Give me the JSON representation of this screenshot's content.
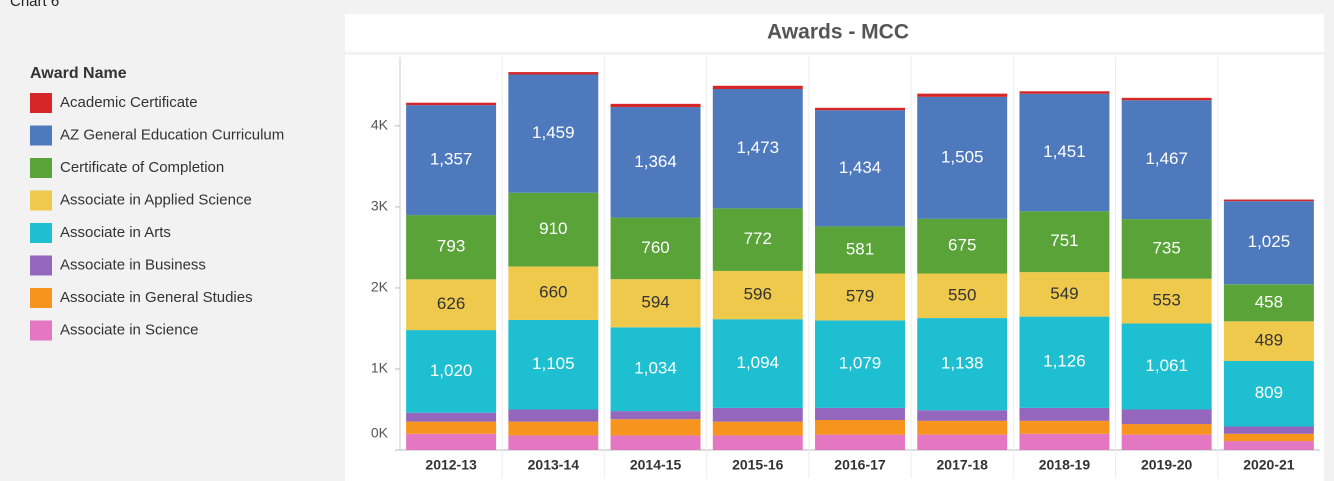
{
  "chart_data": {
    "type": "stacked_bar",
    "page_label": "Chart 6",
    "title": "Awards  - MCC",
    "legend_title": "Award Name",
    "categories": [
      "2012-13",
      "2013-14",
      "2014-15",
      "2015-16",
      "2016-17",
      "2017-18",
      "2018-19",
      "2019-20",
      "2020-21"
    ],
    "ylim": [
      0,
      4850
    ],
    "yticks": [
      {
        "value": 0,
        "label": "0K"
      },
      {
        "value": 1000,
        "label": "1K"
      },
      {
        "value": 2000,
        "label": "2K"
      },
      {
        "value": 3000,
        "label": "3K"
      },
      {
        "value": 4000,
        "label": "4K"
      }
    ],
    "grid": false,
    "legend_position": "left",
    "series": [
      {
        "name": "Academic Certificate",
        "color": "#d62728",
        "values": [
          30,
          30,
          40,
          40,
          30,
          40,
          30,
          30,
          20
        ]
      },
      {
        "name": "AZ General Education Curriculum",
        "color": "#4e79bd",
        "values": [
          1357,
          1459,
          1364,
          1473,
          1434,
          1505,
          1451,
          1467,
          1025
        ],
        "value_labels": [
          "1,357",
          "1,459",
          "1,364",
          "1,473",
          "1,434",
          "1,505",
          "1,451",
          "1,467",
          "1,025"
        ]
      },
      {
        "name": "Certificate of Completion",
        "color": "#59a339",
        "values": [
          793,
          910,
          760,
          772,
          581,
          675,
          751,
          735,
          458
        ]
      },
      {
        "name": "Associate in Applied Science",
        "color": "#efc94c",
        "values": [
          626,
          660,
          594,
          596,
          579,
          550,
          549,
          553,
          489
        ]
      },
      {
        "name": "Associate in Arts",
        "color": "#1ebfd0",
        "values": [
          1020,
          1105,
          1034,
          1094,
          1079,
          1138,
          1126,
          1061,
          809
        ],
        "value_labels": [
          "1,020",
          "1,105",
          "1,034",
          "1,094",
          "1,079",
          "1,138",
          "1,126",
          "1,061",
          "809"
        ]
      },
      {
        "name": "Associate in Business",
        "color": "#9467bd",
        "values": [
          110,
          150,
          100,
          170,
          150,
          130,
          160,
          180,
          90
        ]
      },
      {
        "name": "Associate in General Studies",
        "color": "#f7941d",
        "values": [
          150,
          170,
          200,
          170,
          180,
          170,
          160,
          130,
          90
        ]
      },
      {
        "name": "Associate in Science",
        "color": "#e377c2",
        "values": [
          200,
          180,
          180,
          180,
          190,
          190,
          200,
          190,
          110
        ]
      }
    ]
  }
}
